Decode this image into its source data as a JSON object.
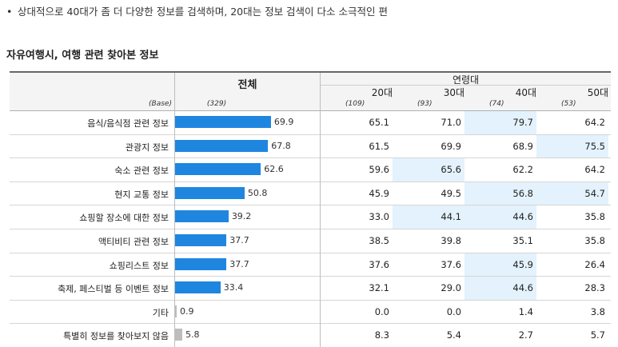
{
  "note": "상대적으로 40대가 좀 더 다양한 정보를 검색하며, 20대는 정보 검색이 다소 소극적인 편",
  "table_title": "자유여행시, 여행 관련 찾아본 정보",
  "header": {
    "total": "전체",
    "age_group": "연령대",
    "columns": [
      "20대",
      "30대",
      "40대",
      "50대"
    ],
    "base_label": "(Base)",
    "base_total": "(329)",
    "base_columns": [
      "(109)",
      "(93)",
      "(74)",
      "(53)"
    ]
  },
  "rows": [
    {
      "label": "음식/음식점 관련 정보",
      "total": "69.9",
      "total_value": 69.9,
      "values": [
        "65.1",
        "71.0",
        "79.7",
        "64.2"
      ],
      "highlight": [
        false,
        false,
        true,
        false
      ]
    },
    {
      "label": "관광지 정보",
      "total": "67.8",
      "total_value": 67.8,
      "values": [
        "61.5",
        "69.9",
        "68.9",
        "75.5"
      ],
      "highlight": [
        false,
        false,
        false,
        true
      ]
    },
    {
      "label": "숙소 관련 정보",
      "total": "62.6",
      "total_value": 62.6,
      "values": [
        "59.6",
        "65.6",
        "62.2",
        "64.2"
      ],
      "highlight": [
        false,
        true,
        false,
        false
      ]
    },
    {
      "label": "현지 교통 정보",
      "total": "50.8",
      "total_value": 50.8,
      "values": [
        "45.9",
        "49.5",
        "56.8",
        "54.7"
      ],
      "highlight": [
        false,
        false,
        true,
        true
      ]
    },
    {
      "label": "쇼핑할 장소에 대한 정보",
      "total": "39.2",
      "total_value": 39.2,
      "values": [
        "33.0",
        "44.1",
        "44.6",
        "35.8"
      ],
      "highlight": [
        false,
        true,
        true,
        false
      ]
    },
    {
      "label": "액티비티 관련 정보",
      "total": "37.7",
      "total_value": 37.7,
      "values": [
        "38.5",
        "39.8",
        "35.1",
        "35.8"
      ],
      "highlight": [
        false,
        false,
        false,
        false
      ]
    },
    {
      "label": "쇼핑리스트 정보",
      "total": "37.7",
      "total_value": 37.7,
      "values": [
        "37.6",
        "37.6",
        "45.9",
        "26.4"
      ],
      "highlight": [
        false,
        false,
        true,
        false
      ]
    },
    {
      "label": "축제, 페스티벌 등 이벤트 정보",
      "total": "33.4",
      "total_value": 33.4,
      "values": [
        "32.1",
        "29.0",
        "44.6",
        "28.3"
      ],
      "highlight": [
        false,
        false,
        true,
        false
      ]
    },
    {
      "label": "기타",
      "total": "0.9",
      "total_value": 0.9,
      "values": [
        "0.0",
        "0.0",
        "1.4",
        "3.8"
      ],
      "highlight": [
        false,
        false,
        false,
        false
      ],
      "gray": true
    },
    {
      "label": "특별히 정보를 찾아보지 않음",
      "total": "5.8",
      "total_value": 5.8,
      "values": [
        "8.3",
        "5.4",
        "2.7",
        "5.7"
      ],
      "highlight": [
        false,
        false,
        false,
        false
      ],
      "gray": true
    }
  ],
  "colors": {
    "bar": "#1f86e0",
    "bar_gray": "#bdbdbd",
    "highlight": "#e3f2fc"
  }
}
